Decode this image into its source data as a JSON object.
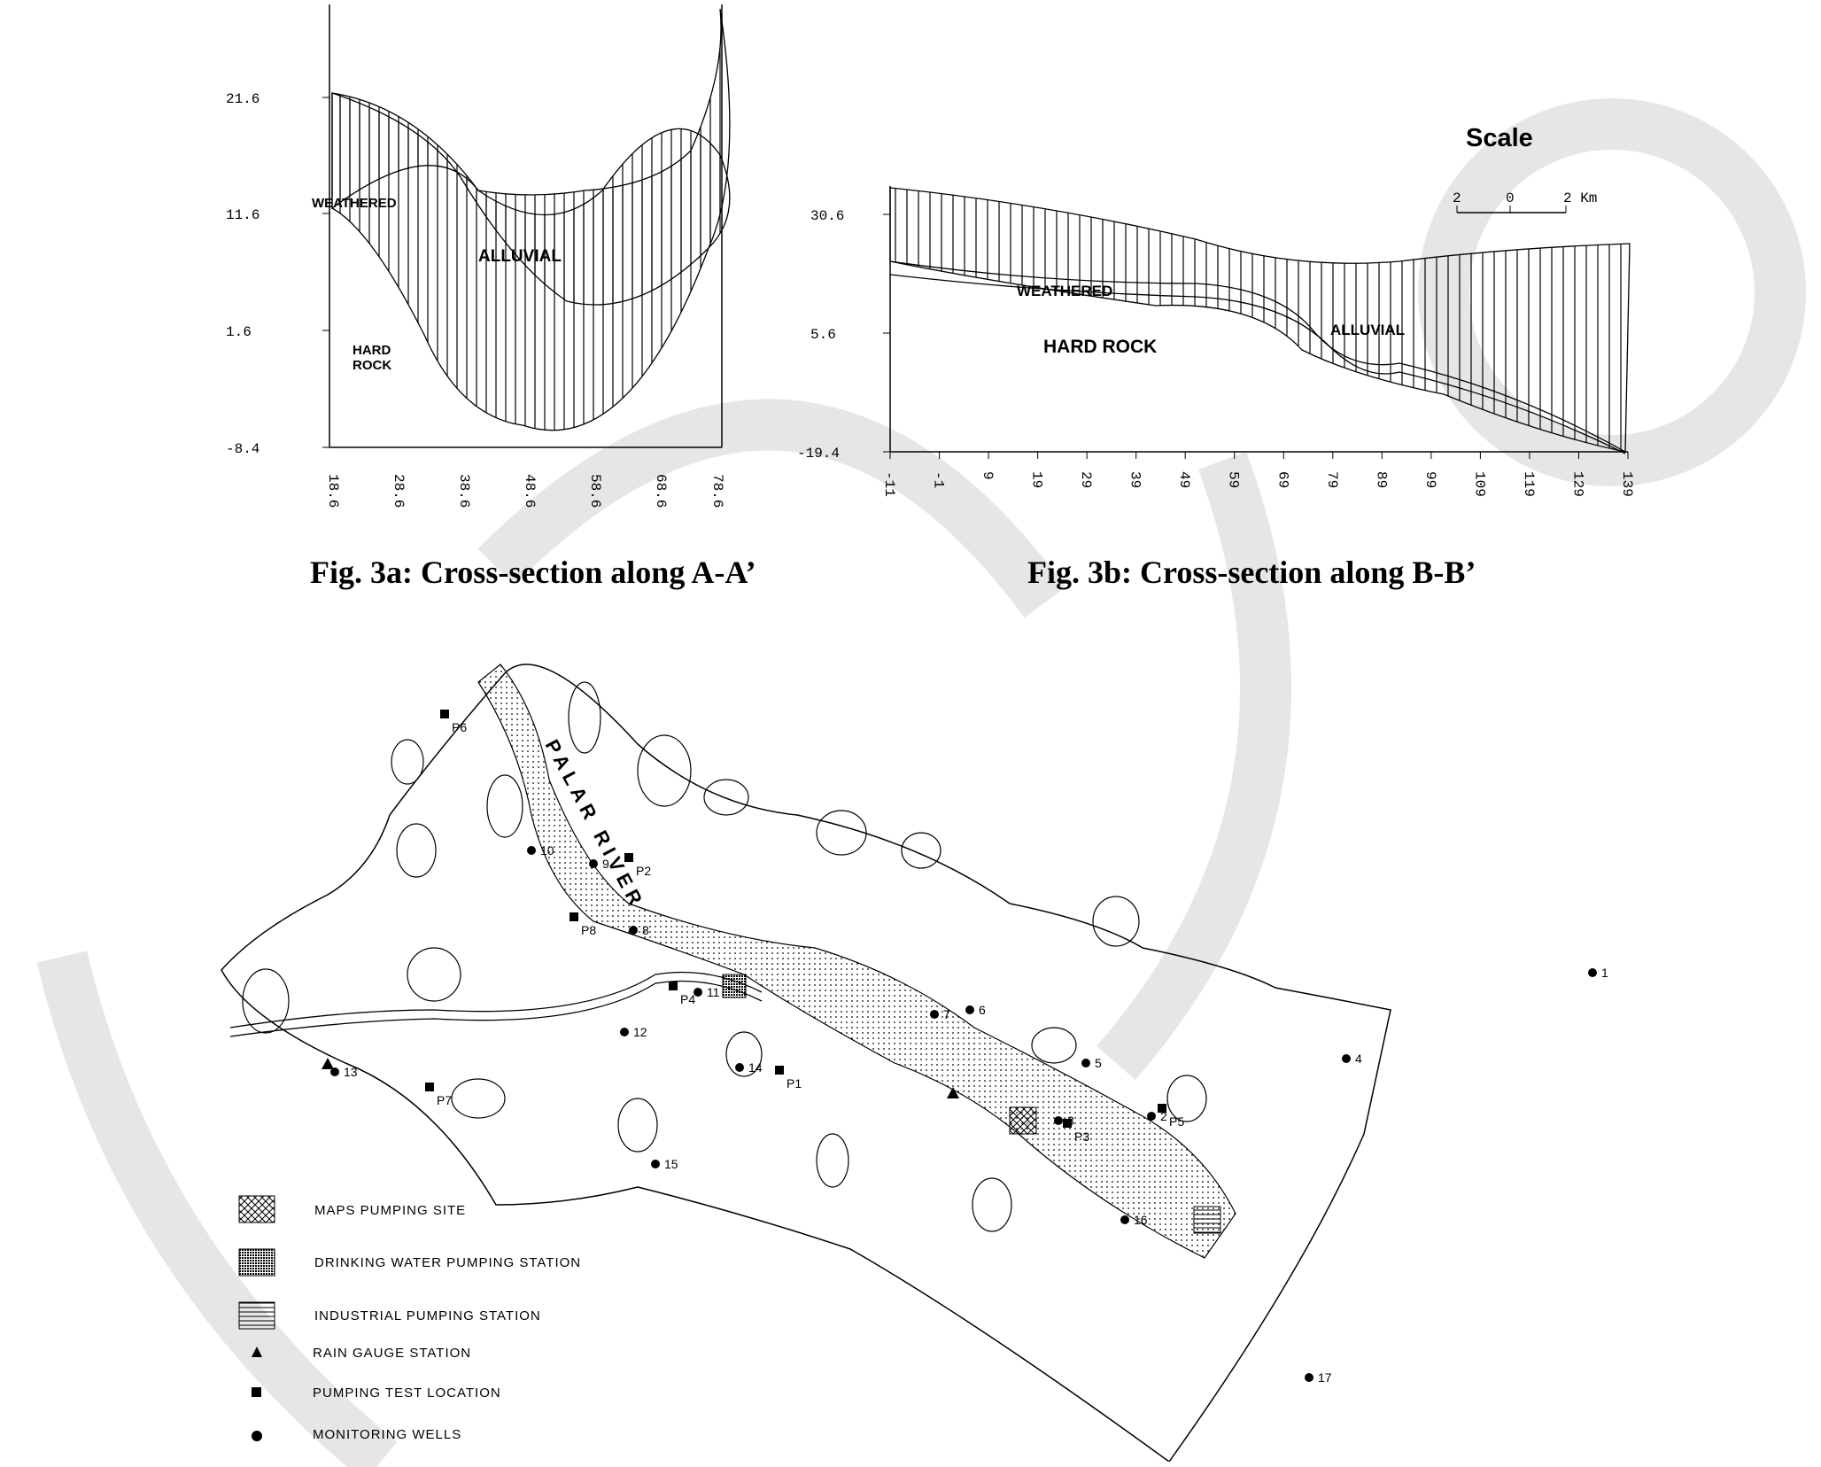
{
  "fig3a": {
    "caption": "Fig. 3a: Cross-section along A-A’",
    "y_ticks": [
      "21.6",
      "11.6",
      "1.6",
      "-8.4"
    ],
    "x_ticks": [
      "18.6",
      "28.6",
      "38.6",
      "48.6",
      "58.6",
      "68.6",
      "78.6"
    ],
    "labels": {
      "weathered": "WEATHERED",
      "alluvial": "ALLUVIAL",
      "hard1": "HARD",
      "hard2": "ROCK"
    }
  },
  "fig3b": {
    "caption": "Fig. 3b: Cross-section along B-B’",
    "y_ticks": [
      "30.6",
      "5.6",
      "-19.4"
    ],
    "x_ticks": [
      "-11",
      "-1",
      "9",
      "19",
      "29",
      "39",
      "49",
      "59",
      "69",
      "79",
      "89",
      "99",
      "109",
      "119",
      "129",
      "139"
    ],
    "labels": {
      "weathered": "WEATHERED",
      "alluvial": "ALLUVIAL",
      "hard": "HARD ROCK"
    },
    "scale": {
      "title": "Scale",
      "t1": "2",
      "t2": "0",
      "t3": "2 Km"
    }
  },
  "map": {
    "river": "PALAR RIVER",
    "wells": [
      "1",
      "2",
      "3",
      "4",
      "5",
      "6",
      "7",
      "8",
      "9",
      "10",
      "11",
      "12",
      "13",
      "14",
      "15",
      "16",
      "17"
    ],
    "pumping_tests": [
      "P1",
      "P2",
      "P3",
      "P4",
      "P5",
      "P6",
      "P7",
      "P8"
    ],
    "legend": {
      "maps_site": "MAPS PUMPING SITE",
      "drinking": "DRINKING WATER PUMPING STATION",
      "industrial": "INDUSTRIAL PUMPING STATION",
      "rain": "RAIN GAUGE STATION",
      "pumping": "PUMPING TEST LOCATION",
      "monitoring": "MONITORING WELLS"
    }
  }
}
